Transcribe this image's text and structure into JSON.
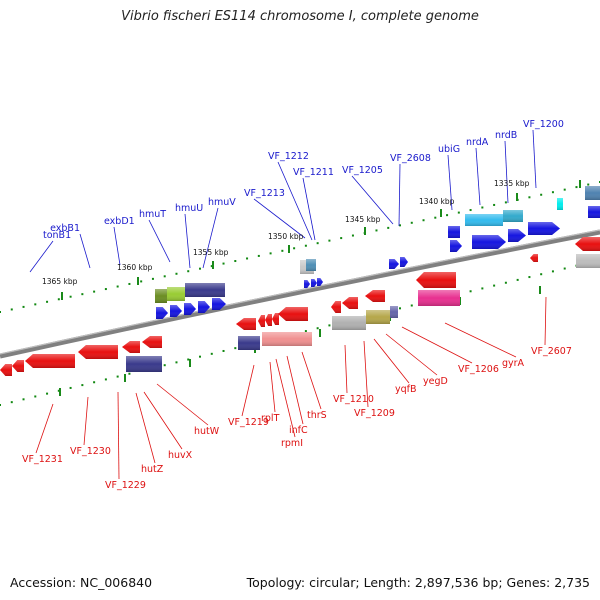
{
  "title": "Vibrio fischeri ES114 chromosome I, complete genome",
  "footer": {
    "accession": "Accession: NC_006840",
    "summary": "Topology: circular; Length: 2,897,536 bp; Genes: 2,735"
  },
  "colors": {
    "forward_label": "#1a1acc",
    "reverse_label": "#dd1111",
    "backbone": "#808080",
    "ruler_tick": "#118811"
  },
  "scale_labels": [
    "1365 kbp",
    "1360 kbp",
    "1355 kbp",
    "1350 kbp",
    "1345 kbp",
    "1340 kbp",
    "1335 kbp"
  ],
  "forward_genes": [
    "tonB1",
    "exbB1",
    "exbD1",
    "hmuT",
    "hmuU",
    "hmuV",
    "VF_1213",
    "VF_1212",
    "VF_1211",
    "VF_1205",
    "VF_2608",
    "ubiG",
    "nrdA",
    "nrdB",
    "VF_1200"
  ],
  "reverse_genes": [
    "VF_1231",
    "VF_1230",
    "VF_1229",
    "hutZ",
    "huvX",
    "hutW",
    "VF_1219",
    "rplT",
    "rpmI",
    "infC",
    "thrS",
    "VF_1210",
    "VF_1209",
    "yqfB",
    "yegD",
    "VF_1206",
    "gyrA",
    "VF_2607"
  ]
}
